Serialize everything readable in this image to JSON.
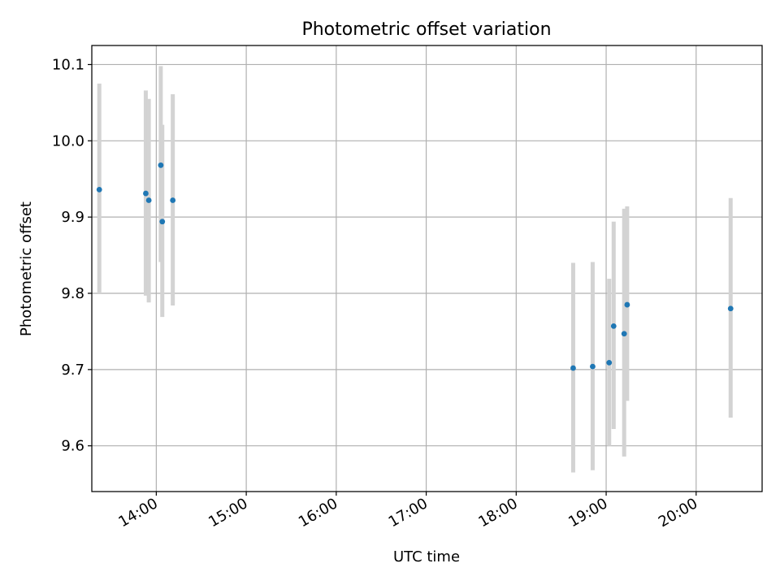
{
  "chart_data": {
    "type": "scatter",
    "title": "Photometric offset variation",
    "xlabel": "UTC time",
    "ylabel": "Photometric offset",
    "x_axis_type": "time",
    "xlim": [
      "13:17",
      "20:44"
    ],
    "ylim": [
      9.54,
      10.125
    ],
    "grid": true,
    "x_ticks": [
      "14:00",
      "15:00",
      "16:00",
      "17:00",
      "18:00",
      "19:00",
      "20:00"
    ],
    "y_ticks": [
      9.6,
      9.7,
      9.8,
      9.9,
      10.0,
      10.1
    ],
    "y_tick_labels": [
      "9.6",
      "9.7",
      "9.8",
      "9.9",
      "10.0",
      "10.1"
    ],
    "points": [
      {
        "x": "13:22",
        "y": 9.936,
        "yerr_low": 9.8,
        "yerr_high": 10.075
      },
      {
        "x": "13:53",
        "y": 9.931,
        "yerr_low": 9.797,
        "yerr_high": 10.066
      },
      {
        "x": "13:55",
        "y": 9.922,
        "yerr_low": 9.788,
        "yerr_high": 10.055
      },
      {
        "x": "14:03",
        "y": 9.968,
        "yerr_low": 9.841,
        "yerr_high": 10.098
      },
      {
        "x": "14:04",
        "y": 9.894,
        "yerr_low": 9.769,
        "yerr_high": 10.021
      },
      {
        "x": "14:11",
        "y": 9.922,
        "yerr_low": 9.784,
        "yerr_high": 10.061
      },
      {
        "x": "18:38",
        "y": 9.702,
        "yerr_low": 9.565,
        "yerr_high": 9.84
      },
      {
        "x": "18:51",
        "y": 9.704,
        "yerr_low": 9.568,
        "yerr_high": 9.841
      },
      {
        "x": "19:02",
        "y": 9.709,
        "yerr_low": 9.6,
        "yerr_high": 9.819
      },
      {
        "x": "19:05",
        "y": 9.757,
        "yerr_low": 9.622,
        "yerr_high": 9.894
      },
      {
        "x": "19:12",
        "y": 9.747,
        "yerr_low": 9.586,
        "yerr_high": 9.911
      },
      {
        "x": "19:14",
        "y": 9.785,
        "yerr_low": 9.659,
        "yerr_high": 9.914
      },
      {
        "x": "20:23",
        "y": 9.78,
        "yerr_low": 9.637,
        "yerr_high": 9.925
      }
    ],
    "colors": {
      "point": "#1f77b4",
      "errorbar": "#d3d3d3",
      "grid": "#b0b0b0",
      "axes": "#000000"
    }
  }
}
